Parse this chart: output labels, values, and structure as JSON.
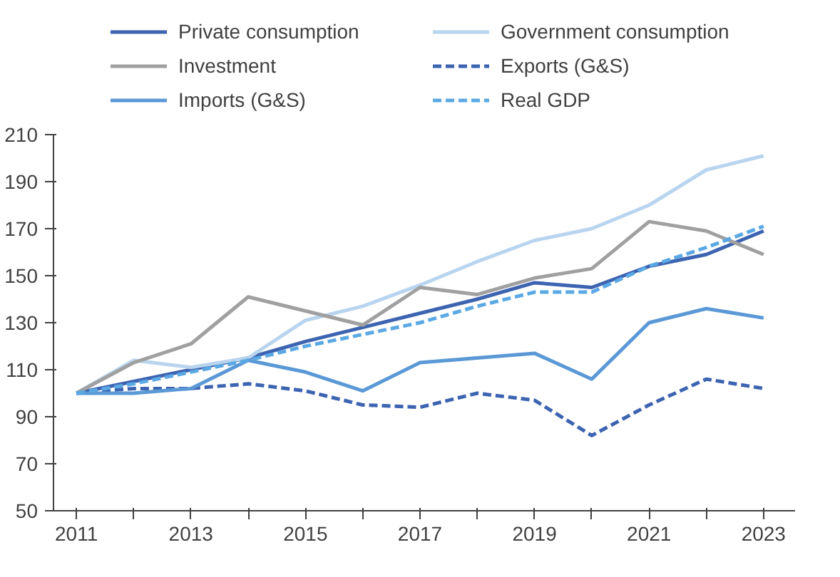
{
  "chart_data": {
    "type": "line",
    "x": [
      2011,
      2012,
      2013,
      2014,
      2015,
      2016,
      2017,
      2018,
      2019,
      2020,
      2021,
      2022,
      2023
    ],
    "series": [
      {
        "name": "Private consumption",
        "color": "#3d64b1",
        "line_style": "solid",
        "values": [
          100,
          105,
          110,
          115,
          122,
          128,
          134,
          140,
          147,
          145,
          154,
          159,
          169
        ]
      },
      {
        "name": "Government consumption",
        "color": "#b8d4ee",
        "line_style": "solid",
        "values": [
          100,
          114,
          111,
          115,
          131,
          137,
          146,
          156,
          165,
          170,
          180,
          195,
          201
        ]
      },
      {
        "name": "Investment",
        "color": "#a0a0a0",
        "line_style": "solid",
        "values": [
          100,
          113,
          121,
          141,
          135,
          129,
          145,
          142,
          149,
          153,
          173,
          169,
          159
        ]
      },
      {
        "name": "Exports (G&S)",
        "color": "#3d64b1",
        "line_style": "dashed",
        "values": [
          100,
          102,
          102,
          104,
          101,
          95,
          94,
          100,
          97,
          82,
          95,
          106,
          102
        ]
      },
      {
        "name": "Imports (G&S)",
        "color": "#5a98d6",
        "line_style": "solid",
        "values": [
          100,
          100,
          102,
          114,
          109,
          101,
          113,
          115,
          117,
          106,
          130,
          136,
          132
        ]
      },
      {
        "name": "Real GDP",
        "color": "#5aa8e4",
        "line_style": "dashed",
        "values": [
          100,
          104,
          109,
          114,
          120,
          125,
          130,
          137,
          143,
          143,
          154,
          162,
          171
        ]
      }
    ],
    "xlim": [
      2010.6,
      2023.55
    ],
    "xticks": [
      2011,
      {
        "value": 2012,
        "label": null
      },
      2013,
      {
        "value": 2014,
        "label": null
      },
      2015,
      {
        "value": 2016,
        "label": null
      },
      2017,
      {
        "value": 2018,
        "label": null
      },
      2019,
      {
        "value": 2020,
        "label": null
      },
      2021,
      {
        "value": 2022,
        "label": null
      },
      2023
    ],
    "ylim": [
      50,
      210
    ],
    "yticks": [
      50,
      70,
      90,
      110,
      130,
      150,
      170,
      190,
      210
    ],
    "grid": false,
    "legend": "top",
    "marker": "none"
  }
}
